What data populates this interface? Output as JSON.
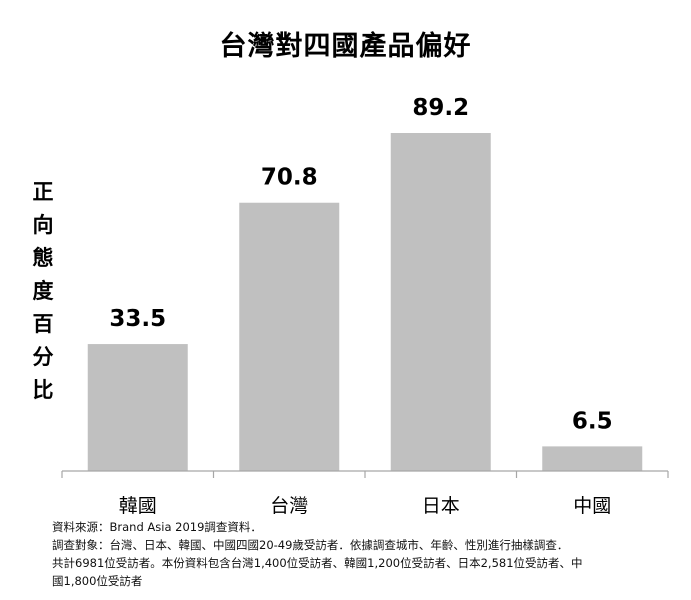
{
  "chart_data": {
    "type": "bar",
    "title": "台灣對四國產品偏好",
    "ylabel": "正向態度百分比",
    "xlabel": "",
    "categories": [
      "韓國",
      "台灣",
      "日本",
      "中國"
    ],
    "values": [
      33.5,
      70.8,
      89.2,
      6.5
    ],
    "data_labels": [
      "33.5",
      "70.8",
      "89.2",
      "6.5"
    ],
    "ylim": [
      0,
      100
    ],
    "grid": false,
    "legend": "none",
    "bar_color": "#c0c0c0",
    "axis_color": "#a6a6a6"
  },
  "notes": [
    "資料來源：Brand Asia 2019調查資料．",
    "調查對象：台灣、日本、韓國、中國四國20-49歲受訪者．依據調查城市、年齡、性別進行抽樣調查．",
    "共計6981位受訪者。本份資料包含台灣1,400位受訪者、韓國1,200位受訪者、日本2,581位受訪者、中",
    "國1,800位受訪者"
  ]
}
